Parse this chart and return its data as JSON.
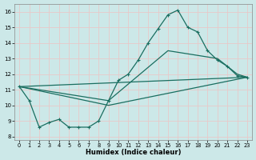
{
  "xlabel": "Humidex (Indice chaleur)",
  "bg_color": "#cce8e8",
  "grid_color": "#e8c8c8",
  "line_color": "#1a6e60",
  "xlim": [
    -0.5,
    23.5
  ],
  "ylim": [
    7.8,
    16.5
  ],
  "xticks": [
    0,
    1,
    2,
    3,
    4,
    5,
    6,
    7,
    8,
    9,
    10,
    11,
    12,
    13,
    14,
    15,
    16,
    17,
    18,
    19,
    20,
    21,
    22,
    23
  ],
  "yticks": [
    8,
    9,
    10,
    11,
    12,
    13,
    14,
    15,
    16
  ],
  "line_main": {
    "x": [
      0,
      1,
      2,
      3,
      4,
      5,
      6,
      7,
      8,
      9,
      10,
      11,
      12,
      13,
      14,
      15,
      16,
      17,
      18,
      19,
      20,
      21,
      22,
      23
    ],
    "y": [
      11.2,
      10.3,
      8.6,
      8.9,
      9.1,
      8.6,
      8.6,
      8.6,
      9.0,
      10.3,
      11.6,
      12.0,
      12.9,
      14.0,
      14.9,
      15.8,
      16.1,
      15.0,
      14.7,
      13.5,
      12.9,
      12.5,
      11.9,
      11.8
    ]
  },
  "line_mid": {
    "x": [
      0,
      9,
      15,
      20,
      22,
      23
    ],
    "y": [
      11.2,
      10.3,
      13.5,
      13.0,
      12.0,
      11.8
    ]
  },
  "line_straight1": {
    "x": [
      0,
      23
    ],
    "y": [
      11.2,
      11.8
    ]
  },
  "line_straight2": {
    "x": [
      0,
      9,
      23
    ],
    "y": [
      11.2,
      10.0,
      11.8
    ]
  }
}
